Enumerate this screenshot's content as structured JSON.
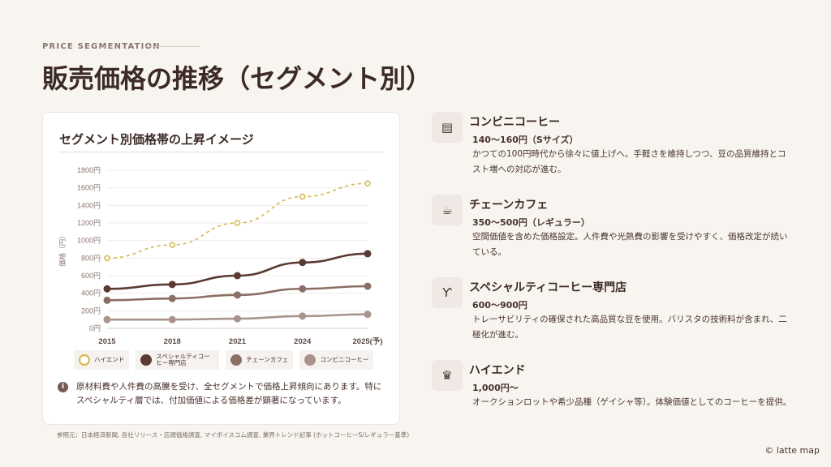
{
  "header": {
    "kicker": "PRICE SEGMENTATION",
    "title": "販売価格の推移（セグメント別）"
  },
  "card": {
    "title": "セグメント別価格帯の上昇イメージ",
    "note": "原材料費や人件費の高騰を受け、全セグメントで価格上昇傾向にあります。特にスペシャルティ層では、付加価値による価格差が顕著になっています。",
    "info_icon": "info-icon"
  },
  "source": "参照元：日本経済新聞, 各社リリース・店頭価格調査, マイボイスコム調査, 業界トレンド記事 (ホットコーヒーS/レギュラー基準)",
  "chart_data": {
    "type": "line",
    "title": "セグメント別価格帯の上昇イメージ",
    "ylabel": "価格（円）",
    "xlabel": "",
    "categories": [
      "2015",
      "2018",
      "2021",
      "2024",
      "2025(予)"
    ],
    "ylim": [
      0,
      1800
    ],
    "yticks": [
      "0円",
      "200円",
      "400円",
      "600円",
      "800円",
      "1000円",
      "1200円",
      "1400円",
      "1600円",
      "1800円"
    ],
    "grid": true,
    "legend": "bottom",
    "series": [
      {
        "name": "ハイエンド",
        "values": [
          800,
          950,
          1200,
          1500,
          1650
        ],
        "color": "#d4b84a",
        "style": "dashed"
      },
      {
        "name": "スペシャルティコーヒー専門店",
        "values": [
          450,
          500,
          600,
          750,
          850
        ],
        "color": "#5a3a32",
        "style": "solid"
      },
      {
        "name": "チェーンカフェ",
        "values": [
          320,
          340,
          380,
          450,
          480
        ],
        "color": "#8b6e64",
        "style": "solid"
      },
      {
        "name": "コンビニコーヒー",
        "values": [
          100,
          100,
          110,
          140,
          160
        ],
        "color": "#a8948c",
        "style": "solid"
      }
    ]
  },
  "segments": [
    {
      "icon": "store-icon",
      "glyph": "▤",
      "name": "コンビニコーヒー",
      "price": "140〜160円（Sサイズ）",
      "desc": "かつての100円時代から徐々に値上げへ。手軽さを維持しつつ、豆の品質維持とコスト増への対応が進む。"
    },
    {
      "icon": "coffee-cup-icon",
      "glyph": "☕",
      "name": "チェーンカフェ",
      "price": "350〜500円（レギュラー）",
      "desc": "空間価値を含めた価格設定。人件費や光熱費の影響を受けやすく、価格改定が続いている。"
    },
    {
      "icon": "sprout-icon",
      "glyph": "Ƴ",
      "name": "スペシャルティコーヒー専門店",
      "price": "600〜900円",
      "desc": "トレーサビリティの確保された高品質な豆を使用。バリスタの技術料が含まれ、二極化が進む。"
    },
    {
      "icon": "crown-icon",
      "glyph": "♛",
      "name": "ハイエンド",
      "price": "1,000円〜",
      "desc": "オークションロットや希少品種（ゲイシャ等）。体験価値としてのコーヒーを提供。"
    }
  ],
  "footer": {
    "copyright": "© latte map"
  }
}
